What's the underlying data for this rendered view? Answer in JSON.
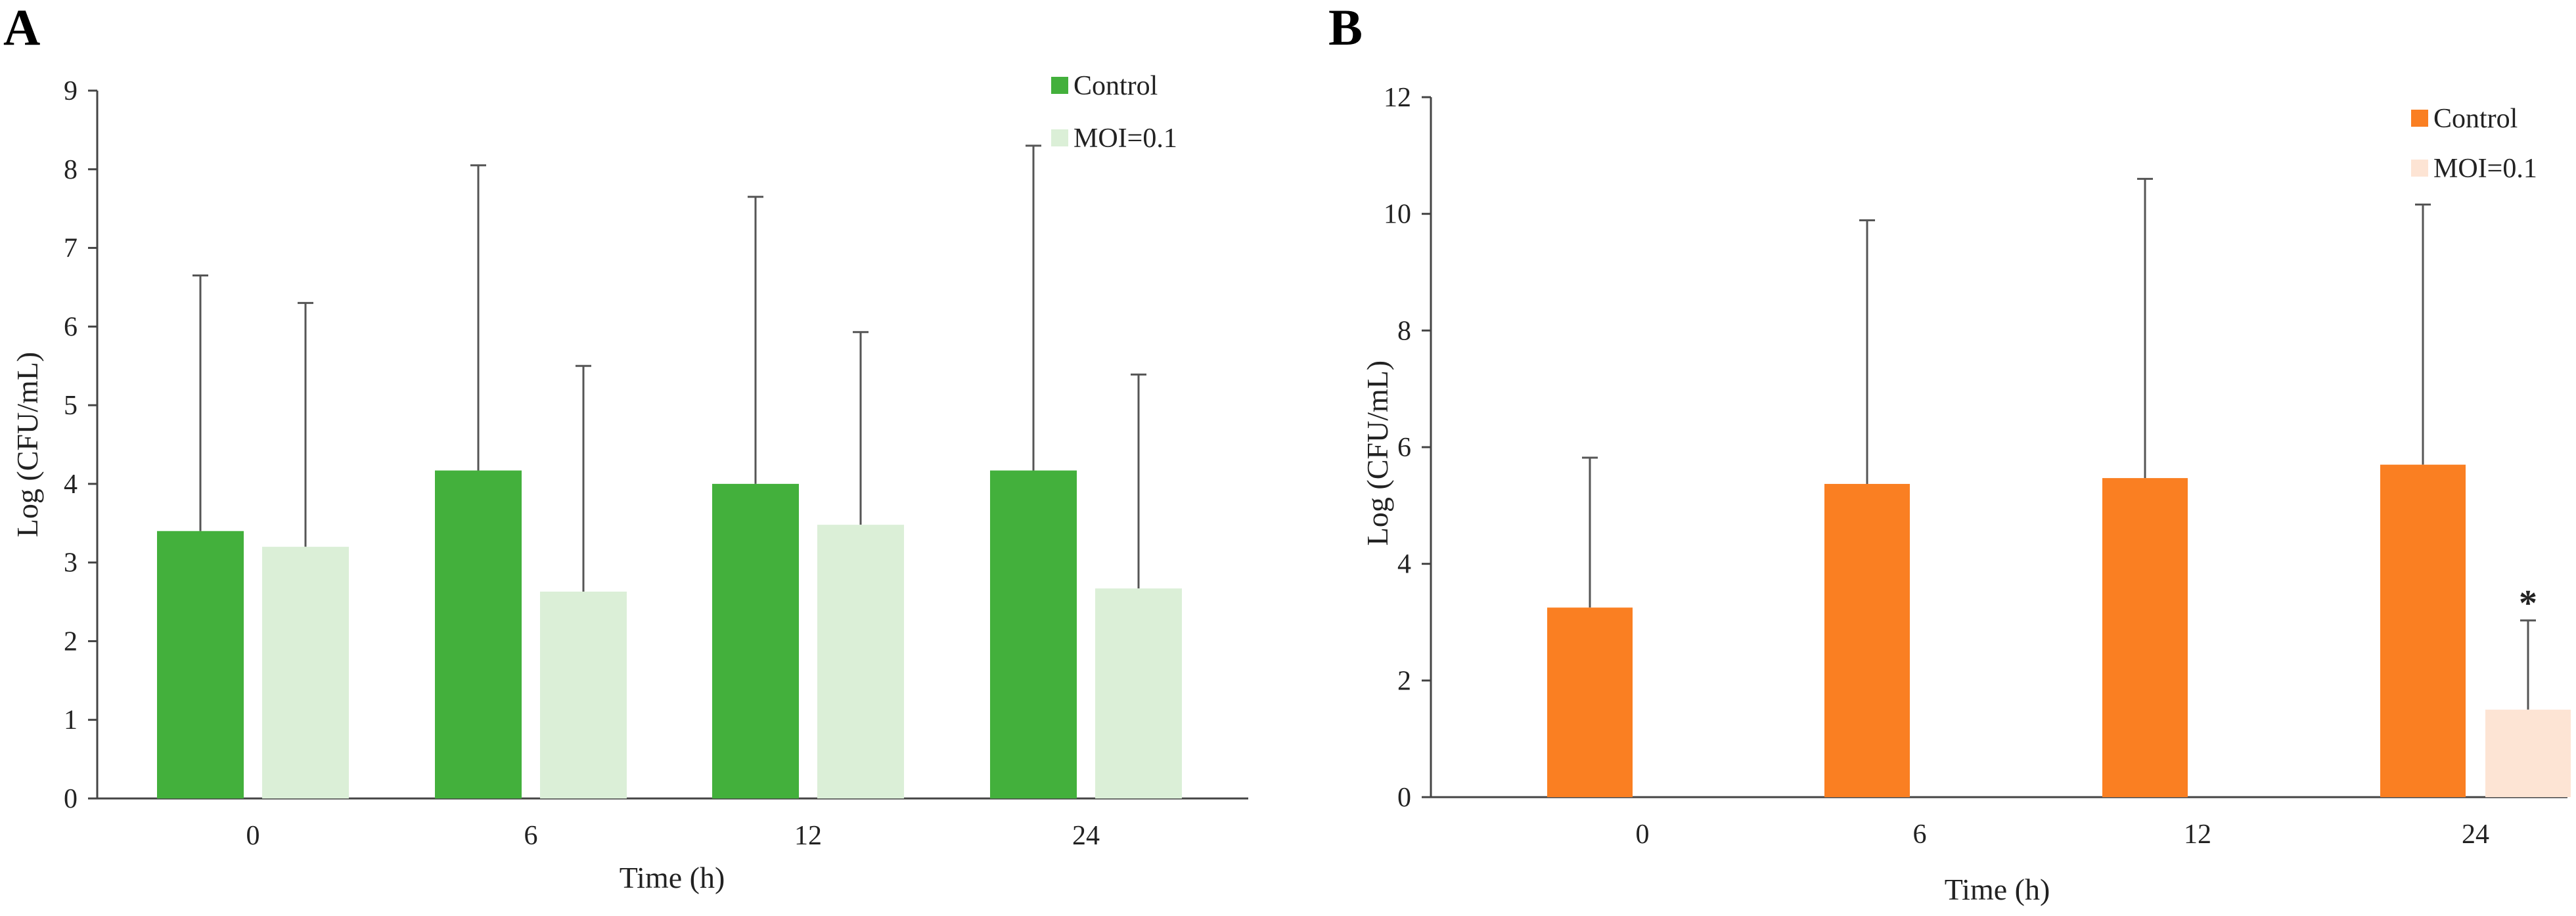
{
  "figure": {
    "panels": [
      "A",
      "B"
    ]
  },
  "chart_data": [
    {
      "panel_label": "A",
      "type": "bar",
      "title": "",
      "xlabel": "Time (h)",
      "ylabel": "Log (CFU/mL)",
      "categories": [
        "0",
        "6",
        "12",
        "24"
      ],
      "ylim": [
        0,
        9
      ],
      "yticks": [
        "0",
        "1",
        "2",
        "3",
        "4",
        "5",
        "6",
        "7",
        "8",
        "9"
      ],
      "legend_position": "top-right",
      "series": [
        {
          "name": "Control",
          "color": "#43b03c",
          "values": [
            3.4,
            4.17,
            4.0,
            4.17
          ],
          "errors": [
            3.25,
            3.88,
            3.65,
            4.13
          ]
        },
        {
          "name": "MOI=0.1",
          "color": "#dbefd7",
          "values": [
            3.2,
            2.63,
            3.48,
            2.67
          ],
          "errors": [
            3.1,
            2.87,
            2.45,
            2.72
          ]
        }
      ],
      "annotations": []
    },
    {
      "panel_label": "B",
      "type": "bar",
      "title": "",
      "xlabel": "Time (h)",
      "ylabel": "Log (CFU/mL)",
      "categories": [
        "0",
        "6",
        "12",
        "24"
      ],
      "ylim": [
        0,
        12
      ],
      "yticks": [
        "0",
        "2",
        "4",
        "6",
        "8",
        "10",
        "12"
      ],
      "legend_position": "top-right",
      "series": [
        {
          "name": "Control",
          "color": "#fa7f22",
          "values": [
            3.25,
            5.37,
            5.47,
            5.7
          ],
          "errors": [
            2.57,
            4.52,
            5.13,
            4.46
          ]
        },
        {
          "name": "MOI=0.1",
          "color": "#fde4d4",
          "values": [
            0,
            0,
            0,
            1.5
          ],
          "errors": [
            0,
            0,
            0,
            1.53
          ]
        }
      ],
      "annotations": [
        {
          "text": "*",
          "category": "24",
          "series": "MOI=0.1"
        }
      ]
    }
  ]
}
